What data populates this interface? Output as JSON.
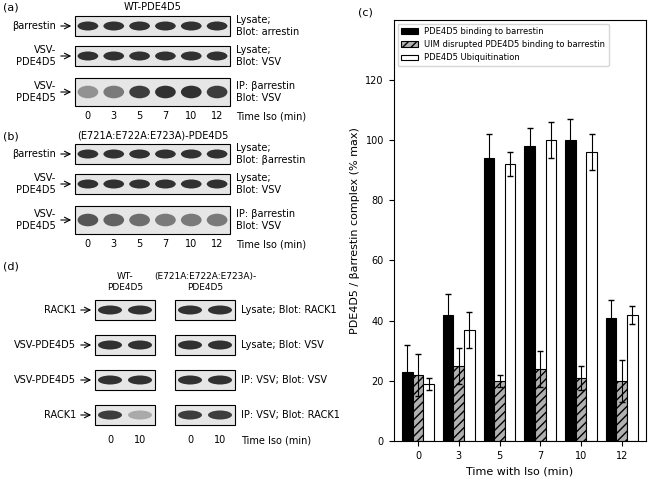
{
  "chart_data": {
    "type": "bar",
    "label": "(c)",
    "categories": [
      "0",
      "3",
      "5",
      "7",
      "10",
      "12"
    ],
    "xlabel": "Time with Iso (min)",
    "ylabel": "PDE4D5 / βarrestin complex (% max)",
    "ylim": [
      0,
      140
    ],
    "yticks": [
      0,
      20,
      40,
      60,
      80,
      100,
      120
    ],
    "legend": "upper left",
    "series": [
      {
        "name": "PDE4D5 binding to barrestin",
        "color": "#000000",
        "values": [
          23,
          42,
          94,
          98,
          100,
          41
        ],
        "errors": [
          9,
          7,
          8,
          6,
          7,
          6
        ]
      },
      {
        "name": "UIM disrupted PDE4D5 binding to barrestin",
        "color": "#b0b0b0",
        "values": [
          22,
          25,
          20,
          24,
          21,
          20
        ],
        "errors": [
          7,
          6,
          2,
          6,
          4,
          7
        ]
      },
      {
        "name": "PDE4D5 Ubiquitination",
        "color": "#ffffff",
        "values": [
          19,
          37,
          92,
          100,
          96,
          42
        ],
        "errors": [
          2,
          6,
          4,
          6,
          6,
          3
        ]
      }
    ]
  },
  "blots": [
    {
      "label": "(a)",
      "title": "WT-PDE4D5",
      "lanes": [
        0,
        3,
        5,
        7,
        10,
        12
      ],
      "lane_title": "Time Iso (min)",
      "rows": [
        {
          "name": "βarrestin",
          "probe": "Lysate;\nBlot: arrestin",
          "intensity": [
            0.85,
            0.85,
            0.85,
            0.85,
            0.85,
            0.85
          ]
        },
        {
          "name": "VSV-\nPDE4D5",
          "probe": "Lysate;\nBlot: VSV",
          "intensity": [
            0.85,
            0.85,
            0.85,
            0.85,
            0.85,
            0.85
          ]
        },
        {
          "name": "VSV-\nPDE4D5",
          "probe": "IP: βarrestin\nBlot: VSV",
          "intensity": [
            0.45,
            0.55,
            0.8,
            0.85,
            0.85,
            0.8
          ]
        }
      ]
    },
    {
      "label": "(b)",
      "title": "(E721A:E722A:E723A)-PDE4D5",
      "lanes": [
        0,
        3,
        5,
        7,
        10,
        12
      ],
      "lane_title": "Time Iso (min)",
      "rows": [
        {
          "name": "βarrestin",
          "probe": "Lysate;\nBlot: βarrestin",
          "intensity": [
            0.85,
            0.85,
            0.85,
            0.85,
            0.85,
            0.85
          ]
        },
        {
          "name": "VSV-\nPDE4D5",
          "probe": "Lysate;\nBlot: VSV",
          "intensity": [
            0.85,
            0.85,
            0.85,
            0.85,
            0.85,
            0.85
          ]
        },
        {
          "name": "VSV-\nPDE4D5",
          "probe": "IP: βarrestin\nBlot: VSV",
          "intensity": [
            0.7,
            0.65,
            0.6,
            0.55,
            0.55,
            0.55
          ]
        }
      ]
    }
  ],
  "blot_d": {
    "label": "(d)",
    "lanes": [
      0,
      10
    ],
    "lane_title": "Time Iso (min)",
    "row_names": [
      "RACK1",
      "VSV-PDE4D5",
      "VSV-PDE4D5",
      "RACK1"
    ],
    "probes": [
      "Lysate; Blot: RACK1",
      "Lysate; Blot: VSV",
      "IP: VSV; Blot: VSV",
      "IP: VSV; Blot: RACK1"
    ],
    "groups": [
      {
        "title": "WT-\nPDE4D5",
        "intensity": [
          [
            0.85,
            0.85
          ],
          [
            0.85,
            0.85
          ],
          [
            0.85,
            0.85
          ],
          [
            0.8,
            0.35
          ]
        ]
      },
      {
        "title": "(E721A:E722A:E723A)-\nPDE4D5",
        "intensity": [
          [
            0.85,
            0.85
          ],
          [
            0.85,
            0.85
          ],
          [
            0.85,
            0.85
          ],
          [
            0.8,
            0.8
          ]
        ]
      }
    ]
  }
}
